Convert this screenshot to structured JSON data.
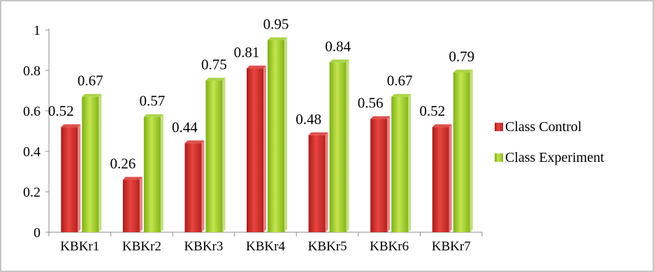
{
  "chart_data": {
    "type": "bar",
    "title": "",
    "xlabel": "",
    "ylabel": "",
    "categories": [
      "KBKr1",
      "KBKr2",
      "KBKr3",
      "KBKr4",
      "KBKr5",
      "KBKr6",
      "KBKr7"
    ],
    "series": [
      {
        "name": "Class Control",
        "color": "#d9302c",
        "values": [
          0.52,
          0.26,
          0.44,
          0.81,
          0.48,
          0.56,
          0.52
        ],
        "labels": [
          "0.52",
          "0.26",
          "0.44",
          "0.81",
          "0.48",
          "0.56",
          "0.52"
        ]
      },
      {
        "name": "Class Experiment",
        "color": "#9ccc2a",
        "values": [
          0.67,
          0.57,
          0.75,
          0.95,
          0.84,
          0.67,
          0.79
        ],
        "labels": [
          "0.67",
          "0.57",
          "0.75",
          "0.95",
          "0.84",
          "0.67",
          "0.79"
        ]
      }
    ],
    "ylim": [
      0,
      1
    ],
    "yticks": [
      0,
      0.2,
      0.4,
      0.6,
      0.8,
      1
    ],
    "ytick_labels": [
      "0",
      "0.2",
      "0.4",
      "0.6",
      "0.8",
      "1"
    ],
    "grid": false,
    "legend": "right"
  }
}
